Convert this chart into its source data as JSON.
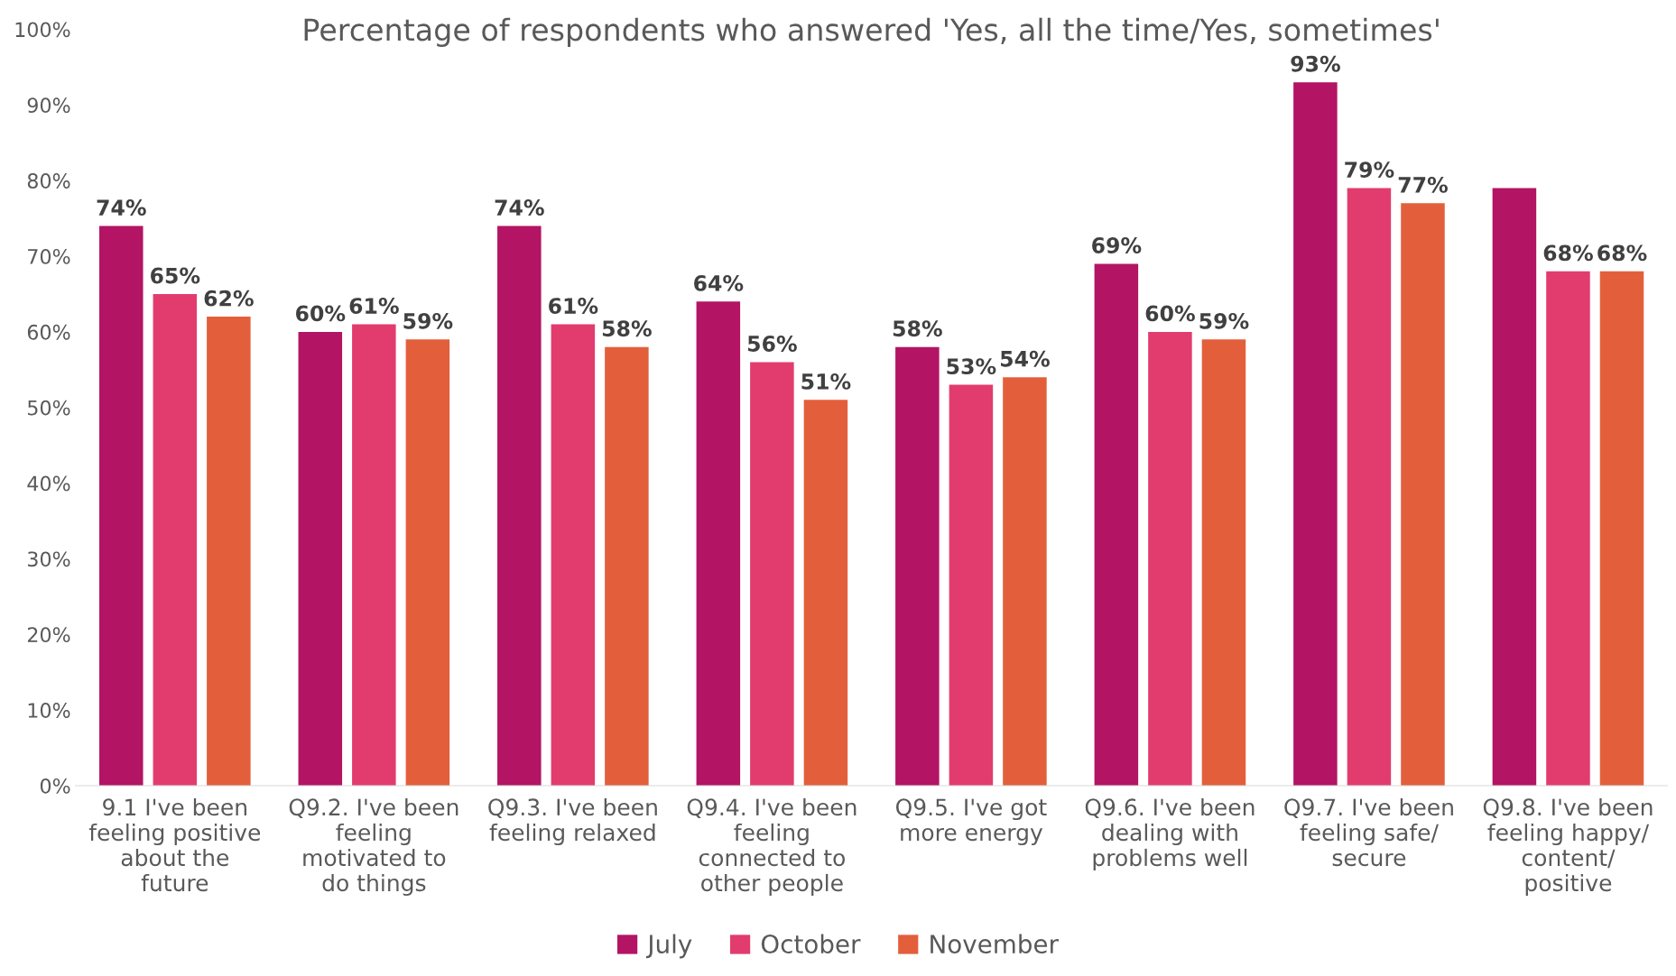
{
  "chart_data": {
    "type": "bar",
    "title": "Percentage of respondents who answered 'Yes, all the time/Yes, sometimes'",
    "categories": [
      "9.1 I've been\nfeeling positive\nabout the\nfuture",
      "Q9.2. I've been\nfeeling\nmotivated to\ndo things",
      "Q9.3. I've been\nfeeling relaxed",
      "Q9.4. I've been\nfeeling\nconnected to\nother people",
      "Q9.5. I've got\nmore energy",
      "Q9.6. I've been\ndealing with\nproblems well",
      "Q9.7. I've been\nfeeling safe/\nsecure",
      "Q9.8. I've been\nfeeling happy/\ncontent/\npositive"
    ],
    "series": [
      {
        "name": "July",
        "color": "#b31464",
        "values": [
          74,
          60,
          74,
          64,
          58,
          69,
          93,
          79
        ],
        "value_labels": [
          "74%",
          "60%",
          "74%",
          "64%",
          "58%",
          "69%",
          "93%",
          null
        ]
      },
      {
        "name": "October",
        "color": "#e23c6e",
        "values": [
          65,
          61,
          61,
          56,
          53,
          60,
          79,
          68
        ],
        "value_labels": [
          "65%",
          "61%",
          "61%",
          "56%",
          "53%",
          "60%",
          "79%",
          "68%"
        ]
      },
      {
        "name": "November",
        "color": "#e35f3b",
        "values": [
          62,
          59,
          58,
          51,
          54,
          59,
          77,
          68
        ],
        "value_labels": [
          "62%",
          "59%",
          "58%",
          "51%",
          "54%",
          "59%",
          "77%",
          "68%"
        ]
      }
    ],
    "ylim": [
      0,
      100
    ],
    "yticks": [
      {
        "value": 0,
        "label": "0%"
      },
      {
        "value": 10,
        "label": "10%"
      },
      {
        "value": 20,
        "label": "20%"
      },
      {
        "value": 30,
        "label": "30%"
      },
      {
        "value": 40,
        "label": "40%"
      },
      {
        "value": 50,
        "label": "50%"
      },
      {
        "value": 60,
        "label": "60%"
      },
      {
        "value": 70,
        "label": "70%"
      },
      {
        "value": 80,
        "label": "80%"
      },
      {
        "value": 90,
        "label": "90%"
      },
      {
        "value": 100,
        "label": "100%"
      }
    ],
    "grid": false,
    "legend": "bottom"
  }
}
